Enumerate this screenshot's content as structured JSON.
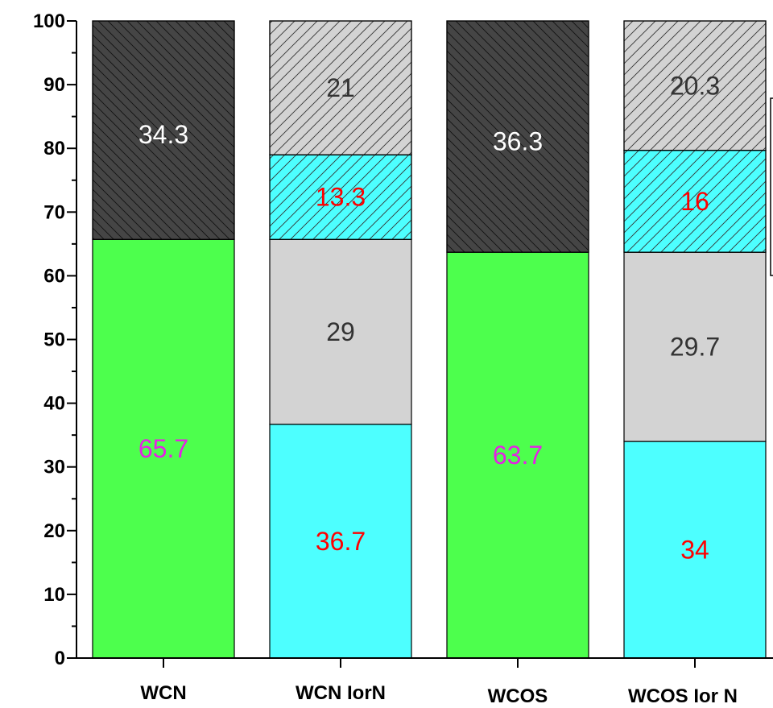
{
  "chart_data": {
    "type": "bar",
    "stacked": true,
    "categories": [
      "WCN",
      "WCN IorN",
      "WCOS",
      "WCOS Ior N"
    ],
    "ylim": [
      0,
      100
    ],
    "yticks": [
      0,
      10,
      20,
      30,
      40,
      50,
      60,
      70,
      80,
      90,
      100
    ],
    "legend": "right (partially cropped)",
    "grid": false,
    "bars": [
      {
        "category": "WCN",
        "segments": [
          {
            "value": 65.7,
            "label": "65.7",
            "fill": "#4dff4d",
            "label_color": "#e620e6",
            "hatch": false
          },
          {
            "value": 34.3,
            "label": "34.3",
            "fill": "#454545",
            "label_color": "#ffffff",
            "hatch": true
          }
        ]
      },
      {
        "category": "WCN IorN",
        "segments": [
          {
            "value": 36.7,
            "label": "36.7",
            "fill": "#4dffff",
            "label_color": "#ff0000",
            "hatch": false
          },
          {
            "value": 29,
            "label": "29",
            "fill": "#d3d3d3",
            "label_color": "#333333",
            "hatch": false
          },
          {
            "value": 13.3,
            "label": "13.3",
            "fill": "#4dffff",
            "label_color": "#ff0000",
            "hatch": true
          },
          {
            "value": 21,
            "label": "21",
            "fill": "#d3d3d3",
            "label_color": "#333333",
            "hatch": true
          }
        ]
      },
      {
        "category": "WCOS",
        "segments": [
          {
            "value": 63.7,
            "label": "63.7",
            "fill": "#4dff4d",
            "label_color": "#e620e6",
            "hatch": false
          },
          {
            "value": 36.3,
            "label": "36.3",
            "fill": "#454545",
            "label_color": "#ffffff",
            "hatch": true
          }
        ]
      },
      {
        "category": "WCOS Ior N",
        "segments": [
          {
            "value": 34,
            "label": "34",
            "fill": "#4dffff",
            "label_color": "#ff0000",
            "hatch": false
          },
          {
            "value": 29.7,
            "label": "29.7",
            "fill": "#d3d3d3",
            "label_color": "#333333",
            "hatch": false
          },
          {
            "value": 16,
            "label": "16",
            "fill": "#4dffff",
            "label_color": "#ff0000",
            "hatch": true
          },
          {
            "value": 20.3,
            "label": "20.3",
            "fill": "#d3d3d3",
            "label_color": "#333333",
            "hatch": true
          }
        ]
      }
    ]
  }
}
